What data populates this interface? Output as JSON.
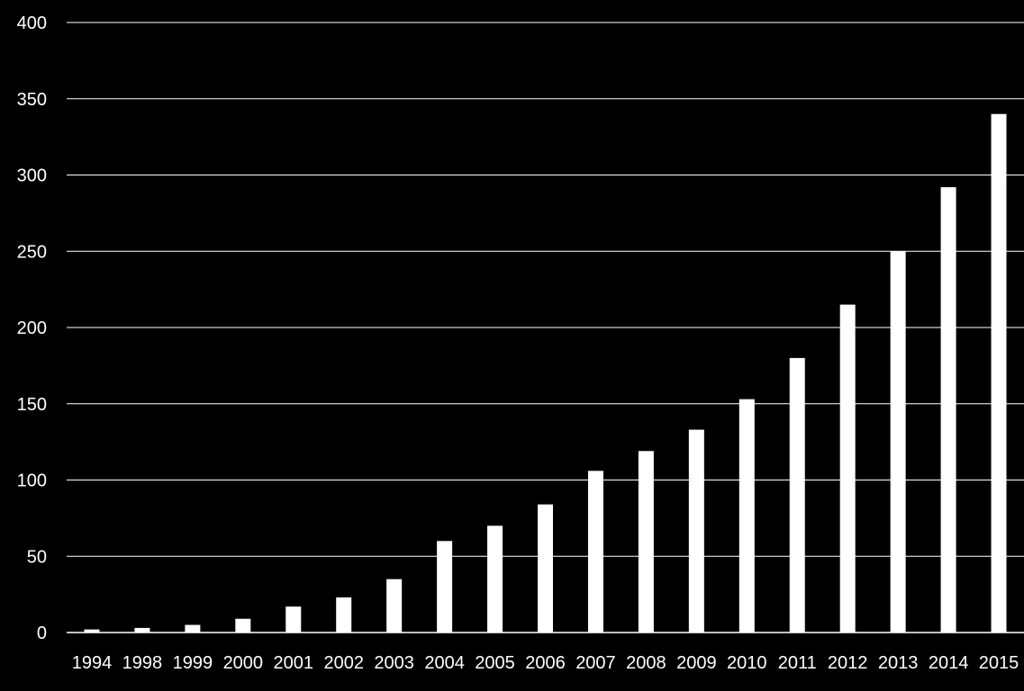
{
  "colors": {
    "background": "#000000",
    "bar": "#ffffff",
    "grid": "#ffffff",
    "text": "#ffffff"
  },
  "chart_data": {
    "type": "bar",
    "title": "",
    "xlabel": "",
    "ylabel": "",
    "categories": [
      "1994",
      "1998",
      "1999",
      "2000",
      "2001",
      "2002",
      "2003",
      "2004",
      "2005",
      "2006",
      "2007",
      "2008",
      "2009",
      "2010",
      "2011",
      "2012",
      "2013",
      "2014",
      "2015"
    ],
    "values": [
      2,
      3,
      5,
      9,
      17,
      23,
      35,
      60,
      70,
      84,
      106,
      119,
      133,
      153,
      180,
      215,
      250,
      292,
      340
    ],
    "ylim": [
      0,
      400
    ],
    "yticks": [
      0,
      50,
      100,
      150,
      200,
      250,
      300,
      350,
      400
    ],
    "grid": true,
    "legend": "none"
  }
}
